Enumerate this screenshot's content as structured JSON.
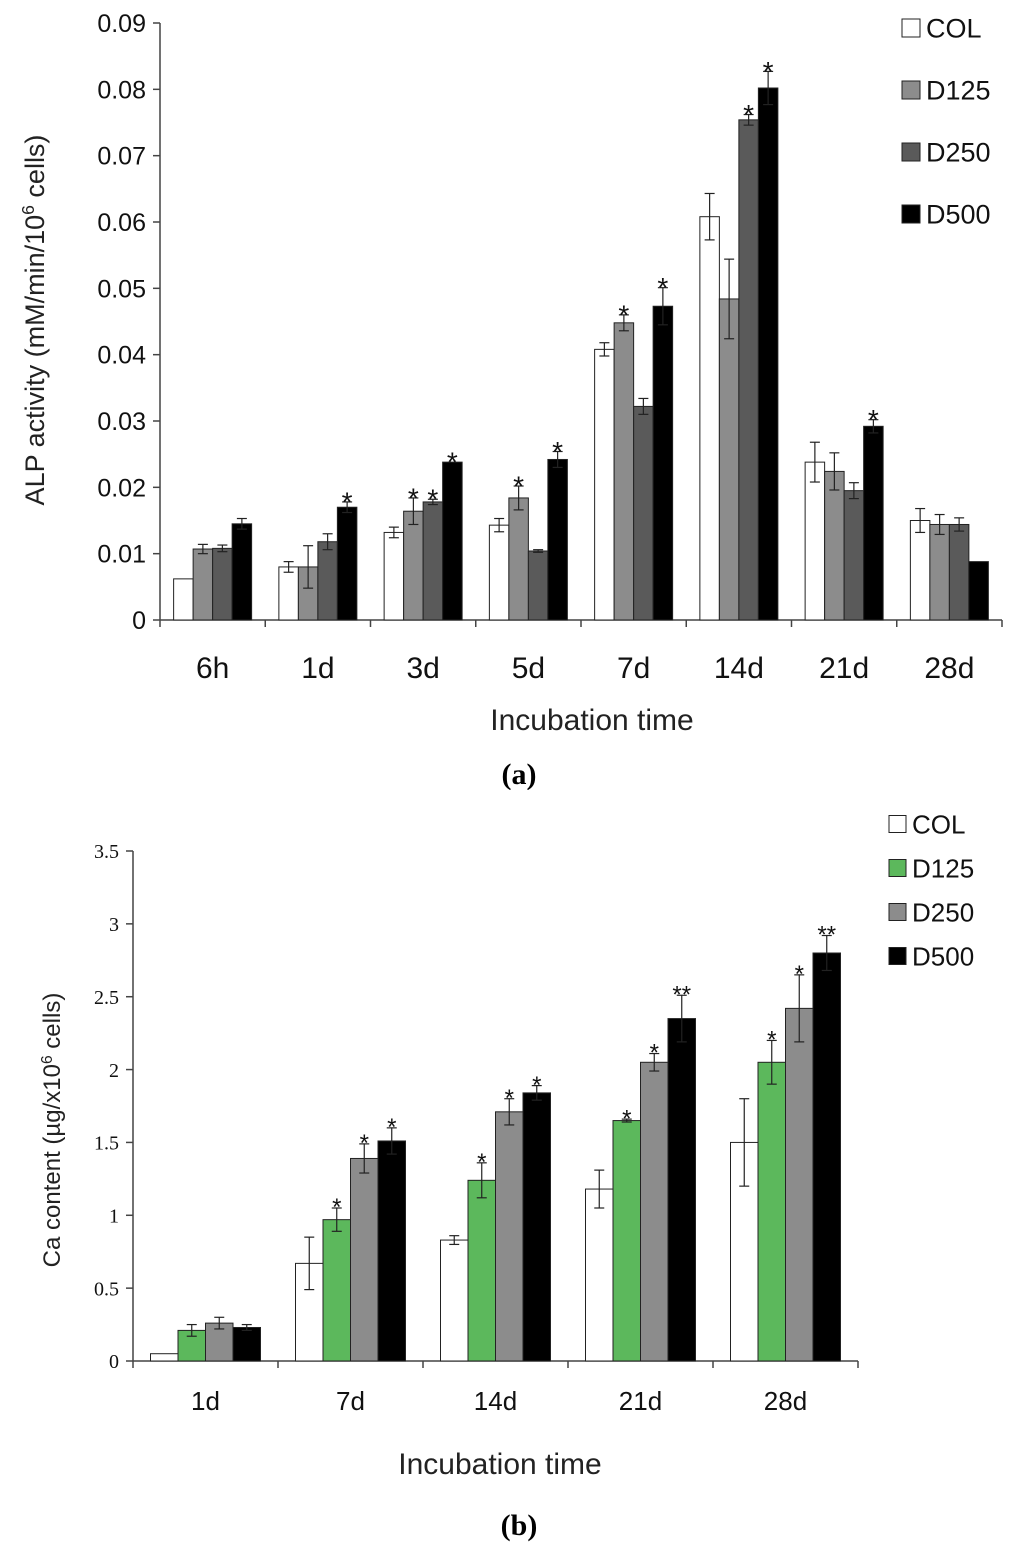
{
  "chart_data": [
    {
      "type": "bar",
      "panel_label": "a",
      "xlabel": "Incubation time",
      "ylabel": "ALP activity (mM/min/10",
      "ylabel_sup": "6",
      "ylabel_tail": " cells)",
      "ylim": [
        0,
        0.09
      ],
      "yticks": [
        {
          "value": 0,
          "label": "0"
        },
        {
          "value": 0.01,
          "label": "0.01"
        },
        {
          "value": 0.02,
          "label": "0.02"
        },
        {
          "value": 0.03,
          "label": "0.03"
        },
        {
          "value": 0.04,
          "label": "0.04"
        },
        {
          "value": 0.05,
          "label": "0.05"
        },
        {
          "value": 0.06,
          "label": "0.06"
        },
        {
          "value": 0.07,
          "label": "0.07"
        },
        {
          "value": 0.08,
          "label": "0.08"
        },
        {
          "value": 0.09,
          "label": "0.09"
        }
      ],
      "grid": false,
      "legend_position": "top-right",
      "categories": [
        "6h",
        "1d",
        "3d",
        "5d",
        "7d",
        "14d",
        "21d",
        "28d"
      ],
      "series": [
        {
          "name": "COL",
          "color": "#ffffff",
          "values": [
            0.0062,
            0.008,
            0.0132,
            0.0143,
            0.0408,
            0.0608,
            0.0238,
            0.015
          ],
          "errors": [
            0.0,
            0.0008,
            0.0008,
            0.001,
            0.001,
            0.0035,
            0.003,
            0.0018
          ],
          "marks": [
            "",
            "",
            "",
            "",
            "",
            "",
            "",
            ""
          ]
        },
        {
          "name": "D125",
          "color": "#8c8c8c",
          "values": [
            0.0107,
            0.008,
            0.0164,
            0.0184,
            0.0448,
            0.0484,
            0.0224,
            0.0144
          ],
          "errors": [
            0.0007,
            0.0032,
            0.002,
            0.0018,
            0.0012,
            0.006,
            0.0028,
            0.0015
          ],
          "marks": [
            "",
            "",
            "*",
            "*",
            "*",
            "",
            "",
            ""
          ]
        },
        {
          "name": "D250",
          "color": "#5a5a5a",
          "values": [
            0.0108,
            0.0118,
            0.0178,
            0.0104,
            0.0322,
            0.0754,
            0.0195,
            0.0144
          ],
          "errors": [
            0.0005,
            0.0012,
            0.0004,
            0.0002,
            0.0012,
            0.0008,
            0.0012,
            0.001
          ],
          "marks": [
            "",
            "",
            "*",
            "",
            "",
            "*",
            "",
            ""
          ]
        },
        {
          "name": "D500",
          "color": "#000000",
          "values": [
            0.0145,
            0.017,
            0.0238,
            0.0242,
            0.0473,
            0.0802,
            0.0292,
            0.0088
          ],
          "errors": [
            0.0008,
            0.0008,
            0.0,
            0.0012,
            0.0028,
            0.0025,
            0.001,
            0.0
          ],
          "marks": [
            "",
            "*",
            "*",
            "*",
            "*",
            "*",
            "*",
            ""
          ]
        }
      ]
    },
    {
      "type": "bar",
      "panel_label": "b",
      "xlabel": "Incubation time",
      "ylabel": "Ca content (µg/x10",
      "ylabel_sup": "6",
      "ylabel_tail": " cells)",
      "ylim": [
        0,
        3.5
      ],
      "yticks": [
        {
          "value": 0,
          "label": "0"
        },
        {
          "value": 0.5,
          "label": "0.5"
        },
        {
          "value": 1,
          "label": "1"
        },
        {
          "value": 1.5,
          "label": "1.5"
        },
        {
          "value": 2,
          "label": "2"
        },
        {
          "value": 2.5,
          "label": "2.5"
        },
        {
          "value": 3,
          "label": "3"
        },
        {
          "value": 3.5,
          "label": "3.5"
        }
      ],
      "grid": false,
      "legend_position": "top-right",
      "categories": [
        "1d",
        "7d",
        "14d",
        "21d",
        "28d"
      ],
      "series": [
        {
          "name": "COL",
          "color": "#ffffff",
          "values": [
            0.05,
            0.67,
            0.83,
            1.18,
            1.5
          ],
          "errors": [
            0.0,
            0.18,
            0.03,
            0.13,
            0.3
          ],
          "marks": [
            "",
            "",
            "",
            "",
            ""
          ]
        },
        {
          "name": "D125",
          "color": "#5cb85c",
          "values": [
            0.21,
            0.97,
            1.24,
            1.65,
            2.05
          ],
          "errors": [
            0.04,
            0.08,
            0.12,
            0.01,
            0.15
          ],
          "marks": [
            "",
            "*",
            "*",
            "*",
            "*"
          ]
        },
        {
          "name": "D250",
          "color": "#8c8c8c",
          "values": [
            0.26,
            1.39,
            1.71,
            2.05,
            2.42
          ],
          "errors": [
            0.04,
            0.1,
            0.09,
            0.06,
            0.23
          ],
          "marks": [
            "",
            "*",
            "*",
            "*",
            "*"
          ]
        },
        {
          "name": "D500",
          "color": "#000000",
          "values": [
            0.23,
            1.51,
            1.84,
            2.35,
            2.8
          ],
          "errors": [
            0.02,
            0.09,
            0.05,
            0.16,
            0.12
          ],
          "marks": [
            "",
            "*",
            "*",
            "**",
            "**"
          ]
        }
      ]
    }
  ]
}
